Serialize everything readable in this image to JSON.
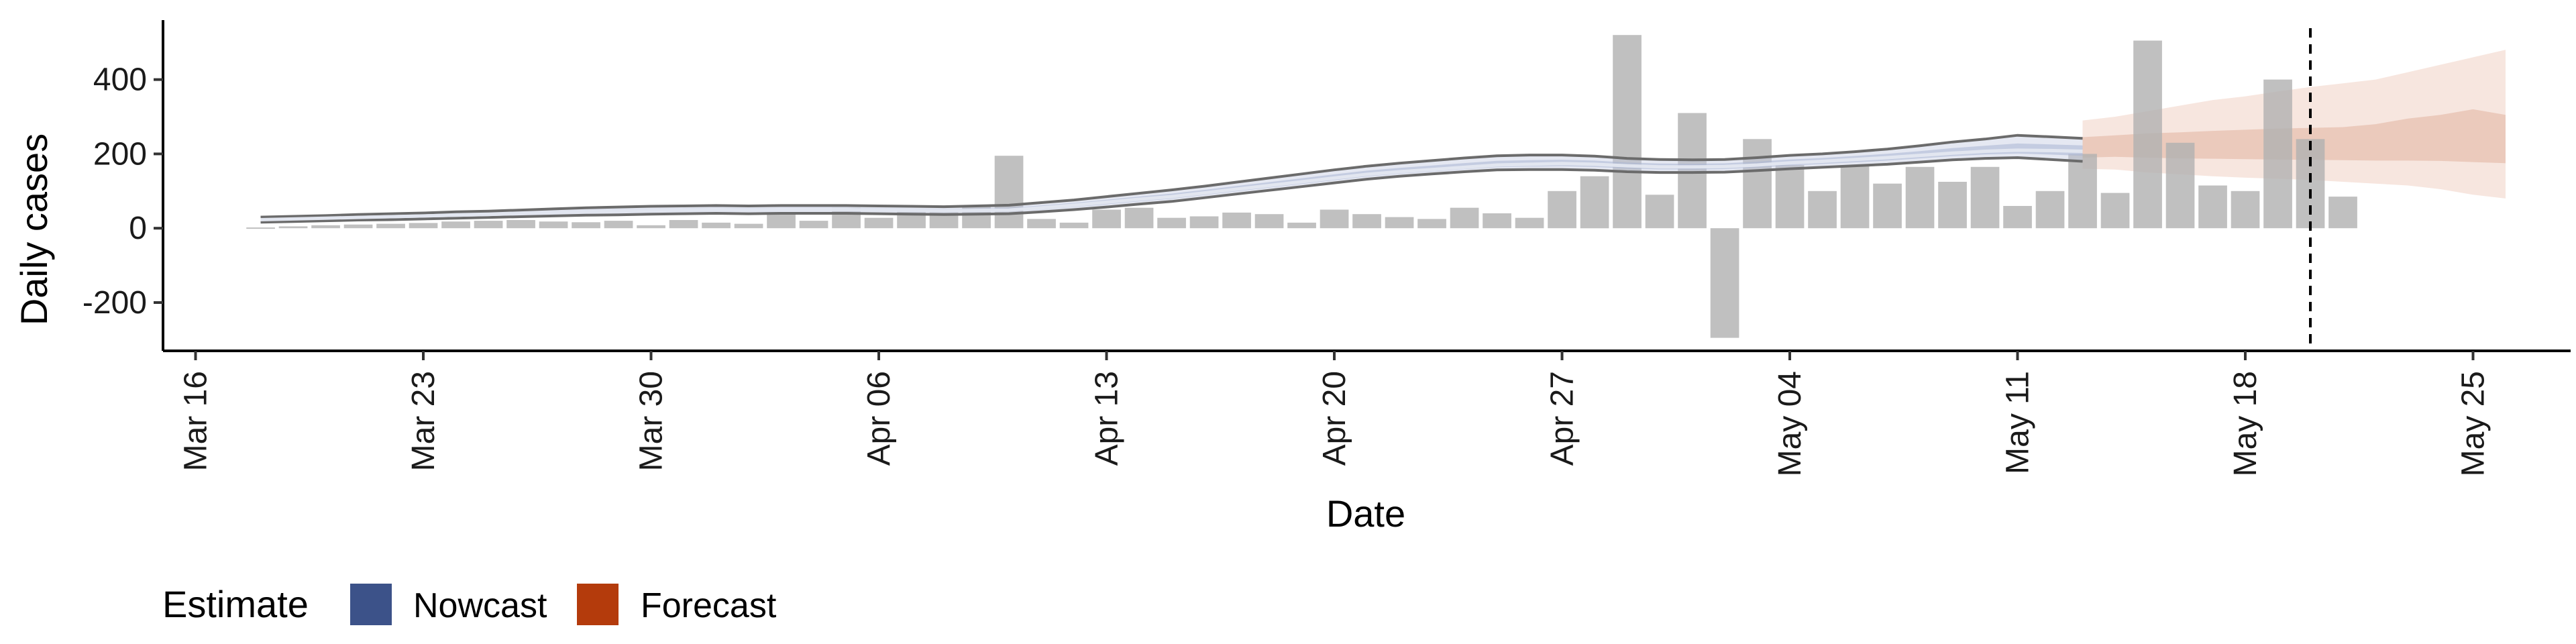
{
  "chart_data": {
    "type": "bar",
    "xlabel": "Date",
    "ylabel": "Daily cases",
    "ylim": [
      -330,
      560
    ],
    "yticks": [
      -200,
      0,
      200,
      400
    ],
    "x_start": "2020-03-15",
    "x_end": "2020-05-28",
    "xticks": [
      {
        "date": "2020-03-16",
        "label": "Mar 16"
      },
      {
        "date": "2020-03-23",
        "label": "Mar 23"
      },
      {
        "date": "2020-03-30",
        "label": "Mar 30"
      },
      {
        "date": "2020-04-06",
        "label": "Apr 06"
      },
      {
        "date": "2020-04-13",
        "label": "Apr 13"
      },
      {
        "date": "2020-04-20",
        "label": "Apr 20"
      },
      {
        "date": "2020-04-27",
        "label": "Apr 27"
      },
      {
        "date": "2020-05-04",
        "label": "May 04"
      },
      {
        "date": "2020-05-11",
        "label": "May 11"
      },
      {
        "date": "2020-05-18",
        "label": "May 18"
      },
      {
        "date": "2020-05-25",
        "label": "May 25"
      }
    ],
    "reference_line_date": "2020-05-20",
    "bars_start_date": "2020-03-18",
    "bars": [
      2,
      5,
      8,
      10,
      12,
      14,
      18,
      20,
      22,
      18,
      16,
      20,
      8,
      22,
      15,
      12,
      40,
      20,
      55,
      28,
      50,
      45,
      60,
      195,
      25,
      15,
      50,
      55,
      28,
      32,
      42,
      38,
      15,
      50,
      38,
      30,
      25,
      55,
      40,
      28,
      100,
      140,
      520,
      90,
      310,
      -295,
      240,
      170,
      100,
      170,
      120,
      165,
      125,
      165,
      60,
      100,
      200,
      95,
      505,
      230,
      115,
      100,
      400,
      240,
      85
    ],
    "series": [
      {
        "name": "Nowcast",
        "color": "#3c5289",
        "start_date": "2020-03-18",
        "median": [
          23,
          25,
          27,
          29,
          31,
          33,
          35,
          37,
          40,
          42,
          44,
          46,
          48,
          49,
          50,
          49,
          50,
          50,
          50,
          49,
          48,
          47,
          48,
          49,
          55,
          62,
          70,
          78,
          85,
          95,
          105,
          115,
          125,
          135,
          145,
          152,
          158,
          164,
          170,
          172,
          174,
          172,
          168,
          165,
          165,
          166,
          170,
          176,
          180,
          185,
          190,
          196,
          202,
          207,
          210,
          209,
          207
        ],
        "lower": [
          16,
          18,
          20,
          22,
          23,
          25,
          27,
          29,
          31,
          33,
          35,
          36,
          38,
          39,
          40,
          39,
          40,
          40,
          40,
          39,
          38,
          37,
          38,
          39,
          44,
          50,
          57,
          65,
          72,
          82,
          92,
          102,
          112,
          122,
          132,
          140,
          146,
          152,
          157,
          158,
          158,
          156,
          152,
          150,
          150,
          151,
          155,
          160,
          164,
          168,
          172,
          178,
          184,
          188,
          190,
          185,
          180
        ],
        "upper": [
          30,
          32,
          34,
          37,
          39,
          41,
          44,
          46,
          49,
          52,
          55,
          57,
          59,
          60,
          61,
          60,
          61,
          61,
          61,
          60,
          59,
          58,
          60,
          62,
          69,
          76,
          85,
          94,
          103,
          113,
          124,
          135,
          146,
          157,
          167,
          175,
          182,
          189,
          195,
          197,
          197,
          194,
          188,
          185,
          184,
          185,
          190,
          196,
          200,
          206,
          213,
          222,
          232,
          240,
          250,
          246,
          242
        ]
      },
      {
        "name": "Forecast",
        "color": "#b43b0c",
        "start_date": "2020-05-13",
        "lower50": [
          190,
          192,
          190,
          188,
          187,
          186,
          185,
          184,
          183,
          182,
          182,
          181,
          178,
          175
        ],
        "upper50": [
          245,
          250,
          255,
          258,
          262,
          265,
          268,
          270,
          272,
          280,
          295,
          305,
          320,
          305
        ],
        "lower90": [
          160,
          158,
          150,
          145,
          140,
          136,
          133,
          130,
          125,
          120,
          115,
          105,
          90,
          80
        ],
        "upper90": [
          290,
          300,
          315,
          330,
          345,
          355,
          368,
          380,
          390,
          400,
          420,
          440,
          460,
          480
        ]
      }
    ],
    "legend": {
      "title": "Estimate",
      "position": "bottom-left",
      "entries": [
        {
          "label": "Nowcast",
          "color": "#3c5289"
        },
        {
          "label": "Forecast",
          "color": "#b43b0c"
        }
      ]
    },
    "grid": false
  }
}
